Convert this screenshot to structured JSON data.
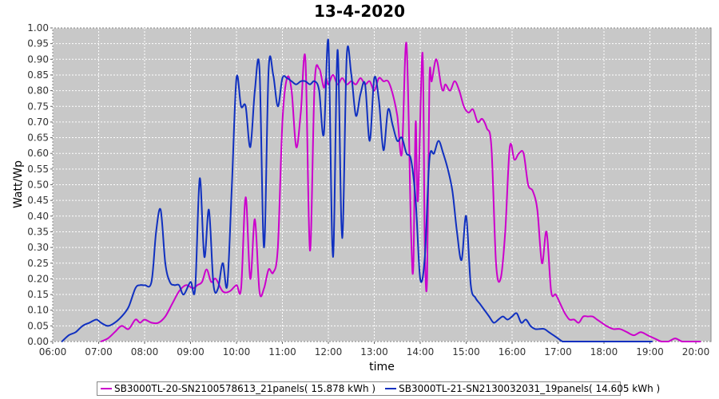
{
  "chart_data": {
    "type": "line",
    "title": "13-4-2020",
    "xlabel": "time",
    "ylabel": "Watt/Wp",
    "x_unit": "hour",
    "xlim": [
      6.0,
      20.33
    ],
    "ylim": [
      0.0,
      1.0
    ],
    "x_ticks": [
      "06:00",
      "07:00",
      "08:00",
      "09:00",
      "10:00",
      "11:00",
      "12:00",
      "13:00",
      "14:00",
      "15:00",
      "16:00",
      "17:00",
      "18:00",
      "19:00",
      "20:00"
    ],
    "y_ticks": [
      "0.00",
      "0.05",
      "0.10",
      "0.15",
      "0.20",
      "0.25",
      "0.30",
      "0.35",
      "0.40",
      "0.45",
      "0.50",
      "0.55",
      "0.60",
      "0.65",
      "0.70",
      "0.75",
      "0.80",
      "0.85",
      "0.90",
      "0.95",
      "1.00"
    ],
    "grid": true,
    "legend_position": "bottom",
    "series": [
      {
        "name": "SB3000TL-20-SN2100578613_21panels( 15.878 kWh )",
        "color": "#cc00cc",
        "x": [
          7.05,
          7.2,
          7.35,
          7.5,
          7.65,
          7.8,
          7.9,
          8.0,
          8.15,
          8.3,
          8.45,
          8.6,
          8.75,
          8.9,
          9.05,
          9.15,
          9.25,
          9.35,
          9.45,
          9.55,
          9.7,
          9.85,
          10.0,
          10.1,
          10.2,
          10.3,
          10.4,
          10.5,
          10.6,
          10.7,
          10.8,
          10.9,
          11.0,
          11.1,
          11.2,
          11.3,
          11.4,
          11.5,
          11.6,
          11.7,
          11.8,
          11.9,
          11.95,
          12.0,
          12.1,
          12.2,
          12.3,
          12.4,
          12.5,
          12.6,
          12.7,
          12.8,
          12.9,
          13.0,
          13.1,
          13.2,
          13.3,
          13.4,
          13.5,
          13.6,
          13.7,
          13.8,
          13.85,
          13.9,
          13.95,
          14.05,
          14.1,
          14.15,
          14.2,
          14.25,
          14.35,
          14.45,
          14.5,
          14.55,
          14.65,
          14.75,
          14.85,
          14.95,
          15.05,
          15.15,
          15.25,
          15.35,
          15.45,
          15.55,
          15.65,
          15.75,
          15.85,
          15.95,
          16.05,
          16.15,
          16.25,
          16.35,
          16.45,
          16.55,
          16.65,
          16.75,
          16.85,
          16.95,
          17.05,
          17.15,
          17.25,
          17.35,
          17.45,
          17.55,
          17.65,
          17.75,
          17.85,
          17.95,
          18.05,
          18.2,
          18.35,
          18.5,
          18.65,
          18.8,
          18.95,
          19.1,
          19.25,
          19.4,
          19.55,
          19.7,
          19.85,
          20.0,
          20.1
        ],
        "y": [
          0.0,
          0.01,
          0.03,
          0.05,
          0.04,
          0.07,
          0.06,
          0.07,
          0.06,
          0.06,
          0.08,
          0.12,
          0.16,
          0.18,
          0.17,
          0.18,
          0.19,
          0.23,
          0.19,
          0.2,
          0.16,
          0.16,
          0.18,
          0.17,
          0.46,
          0.2,
          0.39,
          0.16,
          0.17,
          0.23,
          0.22,
          0.3,
          0.7,
          0.84,
          0.8,
          0.62,
          0.73,
          0.9,
          0.29,
          0.82,
          0.87,
          0.81,
          0.84,
          0.82,
          0.85,
          0.82,
          0.84,
          0.82,
          0.83,
          0.82,
          0.84,
          0.82,
          0.83,
          0.8,
          0.84,
          0.83,
          0.83,
          0.79,
          0.72,
          0.6,
          0.95,
          0.35,
          0.24,
          0.7,
          0.45,
          0.92,
          0.3,
          0.2,
          0.83,
          0.83,
          0.9,
          0.82,
          0.8,
          0.82,
          0.8,
          0.83,
          0.8,
          0.75,
          0.73,
          0.74,
          0.7,
          0.71,
          0.68,
          0.62,
          0.25,
          0.2,
          0.35,
          0.62,
          0.58,
          0.6,
          0.6,
          0.5,
          0.48,
          0.42,
          0.25,
          0.35,
          0.16,
          0.15,
          0.12,
          0.09,
          0.07,
          0.07,
          0.06,
          0.08,
          0.08,
          0.08,
          0.07,
          0.06,
          0.05,
          0.04,
          0.04,
          0.03,
          0.02,
          0.03,
          0.02,
          0.01,
          0.0,
          0.0,
          0.01,
          0.0,
          0.0,
          0.0,
          0.0
        ],
        "y_adjusted": [
          0.0,
          0.01,
          0.03,
          0.05,
          0.04,
          0.07,
          0.06,
          0.07,
          0.06,
          0.06,
          0.08,
          0.12,
          0.16,
          0.18,
          0.17,
          0.18,
          0.19,
          0.23,
          0.19,
          0.2,
          0.16,
          0.16,
          0.18,
          0.17,
          0.46,
          0.2,
          0.39,
          0.16,
          0.17,
          0.23,
          0.22,
          0.3,
          0.7,
          0.84,
          0.8,
          0.62,
          0.73,
          0.9,
          0.29,
          0.82,
          0.87,
          0.81,
          0.84,
          0.82,
          0.85,
          0.82,
          0.84,
          0.82,
          0.83,
          0.82,
          0.84,
          0.82,
          0.83,
          0.8,
          0.84,
          0.83,
          0.83,
          0.79,
          0.72,
          0.6,
          0.95,
          0.35,
          0.24,
          0.7,
          0.45,
          0.92,
          0.3,
          0.2,
          0.83,
          0.83,
          0.9,
          0.82,
          0.8,
          0.82,
          0.8,
          0.83,
          0.8,
          0.75,
          0.73,
          0.74,
          0.7,
          0.71,
          0.68,
          0.62,
          0.25,
          0.2,
          0.35,
          0.62,
          0.58,
          0.6,
          0.6,
          0.5,
          0.48,
          0.42,
          0.25,
          0.35,
          0.16,
          0.15,
          0.12,
          0.09,
          0.07,
          0.07,
          0.06,
          0.08,
          0.08,
          0.08,
          0.07,
          0.06,
          0.05,
          0.04,
          0.04,
          0.03,
          0.02,
          0.03,
          0.02,
          0.01,
          0.0,
          0.0,
          0.0,
          0.0,
          0.0,
          0.0,
          0.0
        ]
      },
      {
        "name": "SB3000TL-21-SN2130032031_19panels( 14.605 kWh )",
        "color": "#1030c0",
        "x": [
          6.2,
          6.35,
          6.5,
          6.65,
          6.8,
          6.95,
          7.05,
          7.2,
          7.35,
          7.5,
          7.65,
          7.8,
          7.9,
          8.0,
          8.15,
          8.25,
          8.35,
          8.45,
          8.55,
          8.65,
          8.75,
          8.85,
          9.0,
          9.1,
          9.2,
          9.3,
          9.4,
          9.5,
          9.6,
          9.7,
          9.8,
          9.9,
          10.0,
          10.1,
          10.2,
          10.3,
          10.4,
          10.5,
          10.6,
          10.7,
          10.8,
          10.9,
          11.0,
          11.1,
          11.2,
          11.3,
          11.4,
          11.5,
          11.6,
          11.7,
          11.8,
          11.9,
          12.0,
          12.1,
          12.2,
          12.3,
          12.4,
          12.5,
          12.6,
          12.7,
          12.8,
          12.9,
          13.0,
          13.1,
          13.2,
          13.3,
          13.4,
          13.5,
          13.6,
          13.7,
          13.8,
          13.9,
          14.0,
          14.1,
          14.2,
          14.3,
          14.4,
          14.5,
          14.6,
          14.7,
          14.8,
          14.9,
          15.0,
          15.1,
          15.2,
          15.3,
          15.4,
          15.5,
          15.6,
          15.7,
          15.8,
          15.9,
          16.0,
          16.1,
          16.2,
          16.3,
          16.4,
          16.5,
          16.6,
          16.7,
          16.8,
          16.9,
          17.0,
          17.1,
          17.2,
          17.3,
          17.4,
          17.5,
          17.6,
          17.7,
          17.8,
          17.9,
          18.0,
          18.15,
          18.3,
          18.45,
          18.6,
          18.75,
          18.9,
          19.05
        ],
        "y": [
          0.0,
          0.02,
          0.03,
          0.05,
          0.06,
          0.07,
          0.06,
          0.05,
          0.06,
          0.08,
          0.11,
          0.17,
          0.18,
          0.18,
          0.19,
          0.35,
          0.42,
          0.25,
          0.19,
          0.18,
          0.18,
          0.15,
          0.19,
          0.17,
          0.52,
          0.27,
          0.42,
          0.18,
          0.17,
          0.25,
          0.18,
          0.5,
          0.84,
          0.75,
          0.75,
          0.62,
          0.8,
          0.87,
          0.3,
          0.87,
          0.85,
          0.75,
          0.84,
          0.84,
          0.83,
          0.82,
          0.83,
          0.83,
          0.82,
          0.83,
          0.8,
          0.66,
          0.96,
          0.27,
          0.93,
          0.33,
          0.91,
          0.85,
          0.72,
          0.79,
          0.82,
          0.64,
          0.84,
          0.77,
          0.61,
          0.74,
          0.69,
          0.64,
          0.65,
          0.6,
          0.58,
          0.45,
          0.2,
          0.27,
          0.58,
          0.6,
          0.64,
          0.6,
          0.55,
          0.48,
          0.35,
          0.26,
          0.4,
          0.18,
          0.14,
          0.12,
          0.1,
          0.08,
          0.06,
          0.07,
          0.08,
          0.07,
          0.08,
          0.09,
          0.06,
          0.07,
          0.05,
          0.04,
          0.04,
          0.04,
          0.03,
          0.02,
          0.01,
          0.0,
          0.0,
          0.0,
          0.0,
          0.0,
          0.0,
          0.0,
          0.0,
          0.0,
          0.0,
          0.0,
          0.0,
          0.0,
          0.0,
          0.0,
          0.0,
          0.0
        ]
      }
    ]
  }
}
